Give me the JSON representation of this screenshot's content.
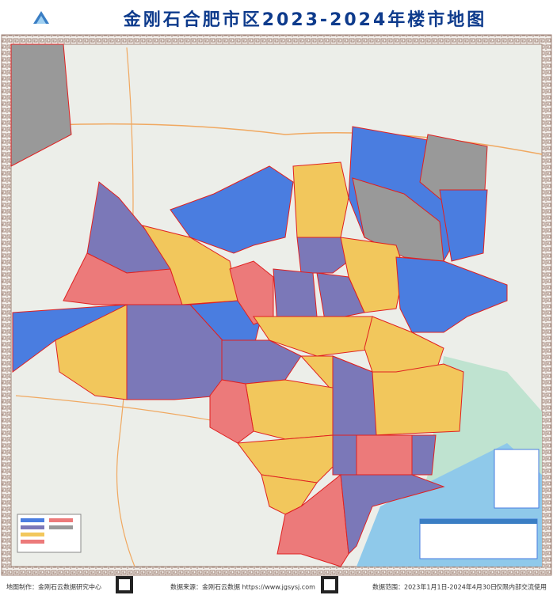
{
  "header": {
    "title": "金刚石合肥市区2023-2024年楼市地图"
  },
  "footer": {
    "producer": "地图制作：金刚石云数据研究中心",
    "source": "数据来源：金刚石云数据 https://www.jgsysj.com",
    "range": "数据范围：2023年1月1日-2024年4月30日",
    "note": "仅限内部交流使用"
  }
}
